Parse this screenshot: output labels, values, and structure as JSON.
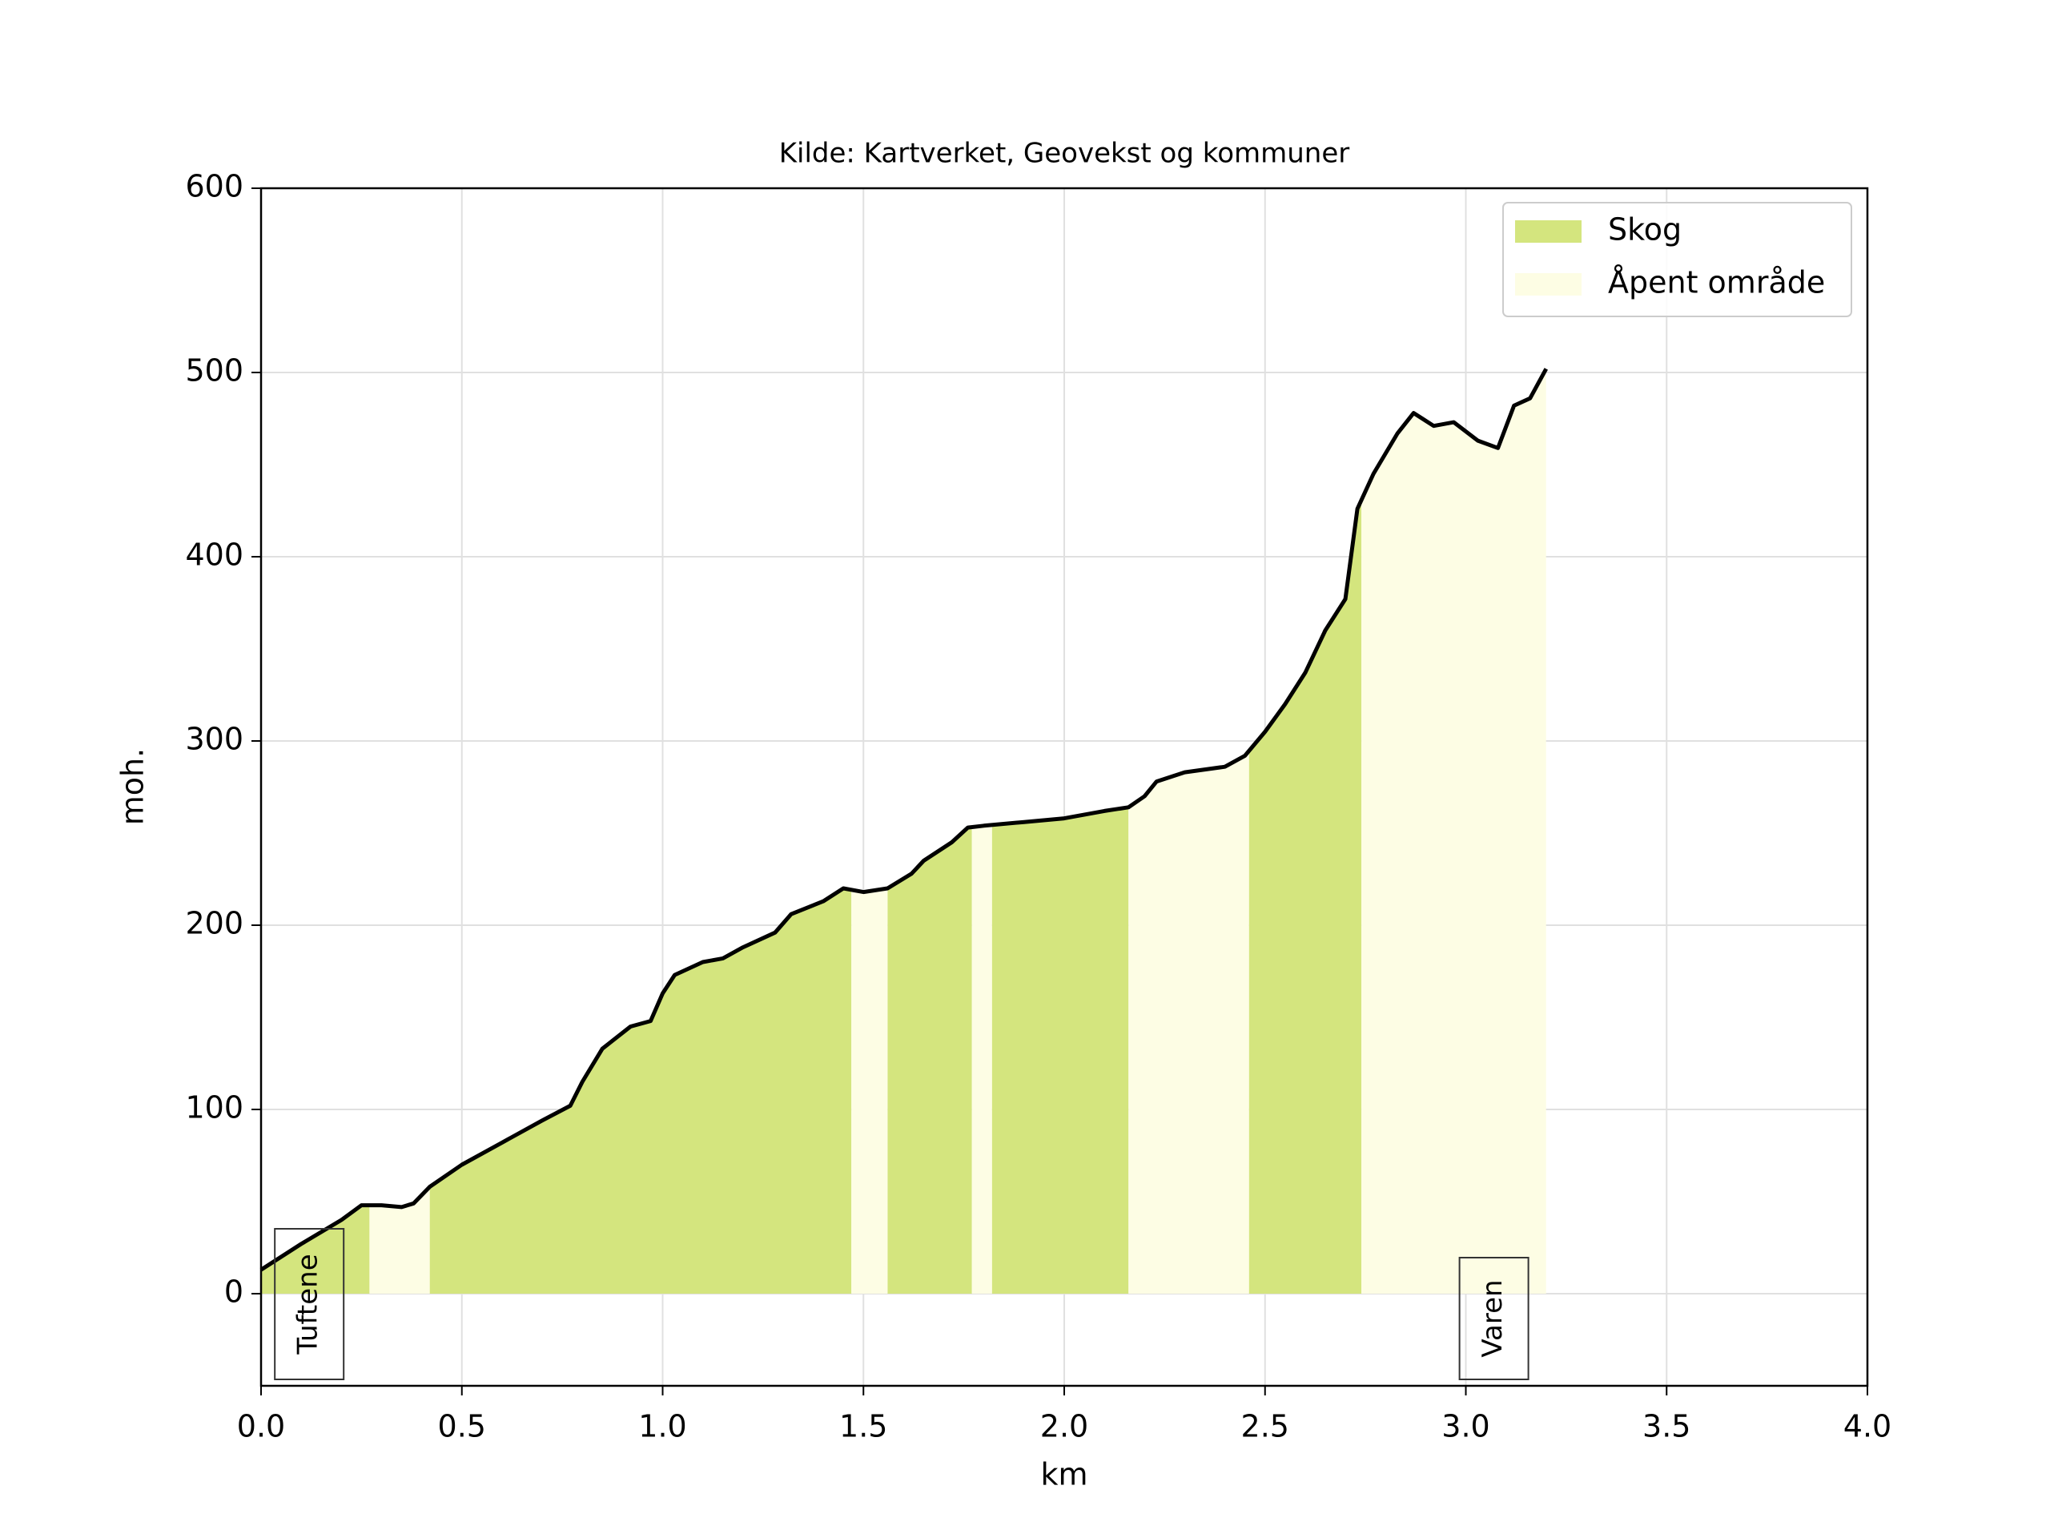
{
  "chart_data": {
    "type": "area",
    "title": "Kilde: Kartverket, Geovekst og kommuner",
    "xlabel": "km",
    "ylabel": "moh.",
    "x": [
      0,
      0.1,
      0.2,
      0.25,
      0.3,
      0.35,
      0.38,
      0.42,
      0.5,
      0.6,
      0.7,
      0.77,
      0.8,
      0.85,
      0.92,
      0.97,
      1.0,
      1.03,
      1.1,
      1.15,
      1.2,
      1.28,
      1.32,
      1.4,
      1.45,
      1.5,
      1.56,
      1.62,
      1.65,
      1.72,
      1.76,
      1.8,
      1.9,
      2.0,
      2.1,
      2.16,
      2.2,
      2.23,
      2.3,
      2.4,
      2.45,
      2.5,
      2.55,
      2.6,
      2.65,
      2.7,
      2.73,
      2.77,
      2.83,
      2.87,
      2.92,
      2.97,
      3.03,
      3.08,
      3.12,
      3.16,
      3.2
    ],
    "values": [
      13,
      27,
      40,
      48,
      48,
      47,
      49,
      58,
      70,
      82,
      94,
      102,
      115,
      133,
      145,
      148,
      163,
      173,
      180,
      182,
      188,
      196,
      206,
      213,
      220,
      218,
      220,
      228,
      235,
      245,
      253,
      254,
      256,
      258,
      262,
      264,
      270,
      278,
      283,
      286,
      292,
      305,
      320,
      337,
      360,
      377,
      426,
      445,
      467,
      478,
      471,
      473,
      463,
      459,
      482,
      486,
      502
    ],
    "line_color": "#000000",
    "series": [
      {
        "name": "Skog",
        "color": "#d4e57e",
        "spans": [
          [
            0,
            0.27
          ],
          [
            0.42,
            1.47
          ],
          [
            1.56,
            1.77
          ],
          [
            1.82,
            2.16
          ],
          [
            2.46,
            2.74
          ]
        ]
      },
      {
        "name": "Åpent område",
        "color": "#fdfde4",
        "spans": [
          [
            0.27,
            0.42
          ],
          [
            1.47,
            1.56
          ],
          [
            1.77,
            1.82
          ],
          [
            2.16,
            2.46
          ],
          [
            2.74,
            3.2
          ]
        ]
      }
    ],
    "annotations": [
      {
        "text": "Tuftene",
        "x": 0.12
      },
      {
        "text": "Varen",
        "x": 3.07
      }
    ],
    "xlim": [
      0,
      4
    ],
    "ylim": [
      -50,
      600
    ],
    "xticks": [
      {
        "value": 0,
        "label": "0.0"
      },
      0.5,
      {
        "value": 1,
        "label": "1.0"
      },
      1.5,
      {
        "value": 2,
        "label": "2.0"
      },
      2.5,
      {
        "value": 3,
        "label": "3.0"
      },
      3.5,
      {
        "value": 4,
        "label": "4.0"
      }
    ],
    "yticks": [
      0,
      100,
      200,
      300,
      400,
      500,
      600
    ],
    "grid": true,
    "legend": "upper right"
  }
}
